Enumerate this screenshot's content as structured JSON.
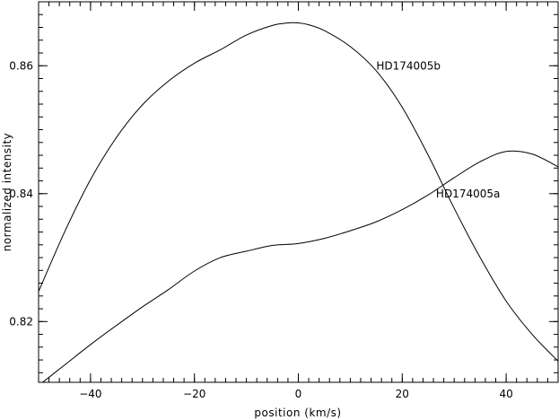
{
  "chart_data": {
    "type": "line",
    "title": "",
    "xlabel": "position (km/s)",
    "ylabel": "normalized intensity",
    "xlim": [
      -50,
      50
    ],
    "ylim": [
      0.8105,
      0.87
    ],
    "x_ticks": [
      -40,
      -20,
      0,
      20,
      40
    ],
    "x_tick_labels": [
      "−40",
      "−20",
      "0",
      "20",
      "40"
    ],
    "y_ticks": [
      0.82,
      0.84,
      0.86
    ],
    "y_tick_labels": [
      "0.82",
      "0.84",
      "0.86"
    ],
    "grid": false,
    "series": [
      {
        "name": "HD174005b",
        "x": [
          -50,
          -45,
          -40,
          -35,
          -30,
          -25,
          -20,
          -15,
          -10,
          -5,
          -2,
          0,
          2,
          5,
          10,
          15,
          20,
          25,
          30,
          35,
          40,
          45,
          50
        ],
        "y": [
          0.8247,
          0.834,
          0.8422,
          0.8488,
          0.8539,
          0.8576,
          0.8604,
          0.8625,
          0.8648,
          0.8663,
          0.8667,
          0.8667,
          0.8664,
          0.8655,
          0.863,
          0.8592,
          0.8535,
          0.846,
          0.8377,
          0.83,
          0.8232,
          0.818,
          0.8138
        ]
      },
      {
        "name": "HD174005a",
        "x": [
          -50,
          -45,
          -40,
          -35,
          -30,
          -25,
          -20,
          -15,
          -10,
          -5,
          0,
          5,
          10,
          15,
          20,
          25,
          30,
          35,
          40,
          45,
          50
        ],
        "y": [
          0.81,
          0.8132,
          0.8164,
          0.8194,
          0.8223,
          0.825,
          0.8279,
          0.83,
          0.831,
          0.8319,
          0.8322,
          0.833,
          0.8342,
          0.8356,
          0.8375,
          0.8398,
          0.8425,
          0.845,
          0.8466,
          0.8462,
          0.8442
        ]
      }
    ],
    "annotations": [
      {
        "text": "HD174005b",
        "x": 15.0,
        "y": 0.86
      },
      {
        "text": "HD174005a",
        "x": 26.5,
        "y": 0.84
      }
    ]
  }
}
